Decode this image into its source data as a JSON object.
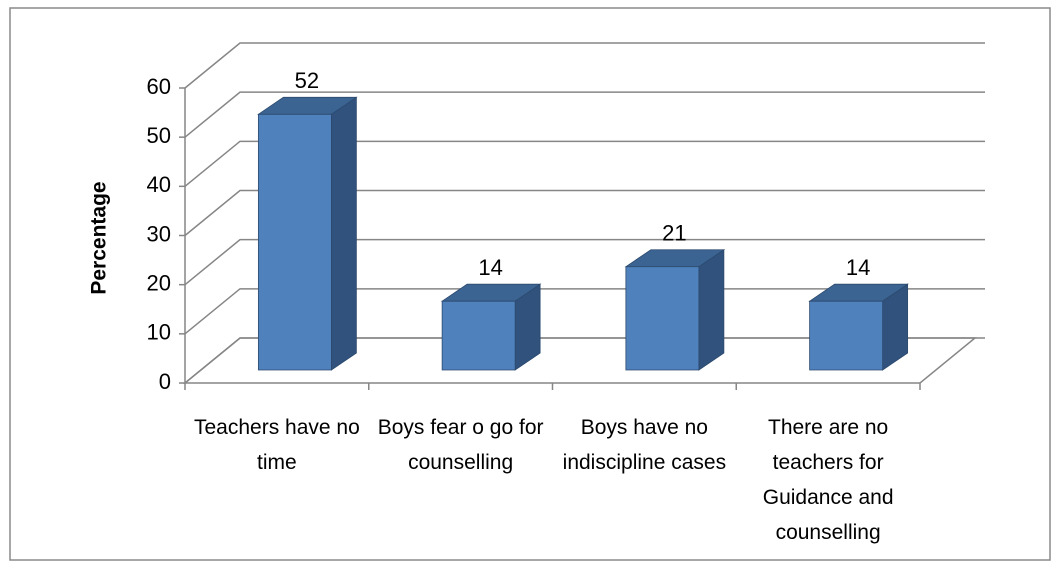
{
  "chart_data": {
    "type": "bar3d",
    "ylabel": "Percentage",
    "categories": [
      "Teachers have no time",
      "Boys fear o go for counselling",
      "Boys have no indiscipline cases",
      "There are no teachers for Guidance and counselling"
    ],
    "values": [
      52,
      14,
      21,
      14
    ],
    "color": "#4f81bd",
    "ylim": [
      0,
      60
    ],
    "yticks": [
      0,
      10,
      20,
      30,
      40,
      50,
      60
    ],
    "grid": true
  }
}
